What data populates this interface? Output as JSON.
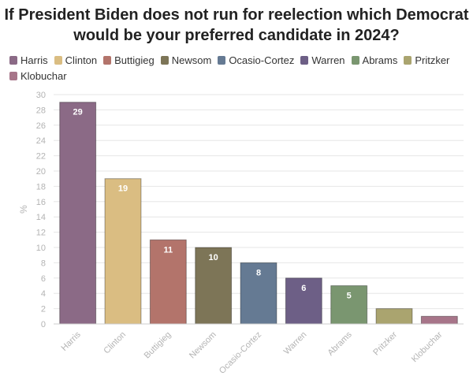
{
  "chart_data": {
    "type": "bar",
    "title": "If President Biden does not run for reelection which Democrat\nwould be your preferred candidate in 2024?",
    "xlabel": "",
    "ylabel": "%",
    "ylim": [
      0,
      30
    ],
    "yticks": [
      0,
      2,
      4,
      6,
      8,
      10,
      12,
      14,
      16,
      18,
      20,
      22,
      24,
      26,
      28,
      30
    ],
    "grid": true,
    "legend": "top-left",
    "categories": [
      "Harris",
      "Clinton",
      "Buttigieg",
      "Newsom",
      "Ocasio-Cortez",
      "Warren",
      "Abrams",
      "Pritzker",
      "Klobuchar"
    ],
    "values": [
      29,
      19,
      11,
      10,
      8,
      6,
      5,
      2,
      1
    ],
    "data_labels": [
      "29",
      "19",
      "11",
      "10",
      "8",
      "6",
      "5",
      "",
      ""
    ],
    "colors": [
      "#8b6a86",
      "#dabd82",
      "#b3746b",
      "#7d7557",
      "#657a93",
      "#6d5f86",
      "#7a9670",
      "#aaa46f",
      "#a77589"
    ]
  }
}
